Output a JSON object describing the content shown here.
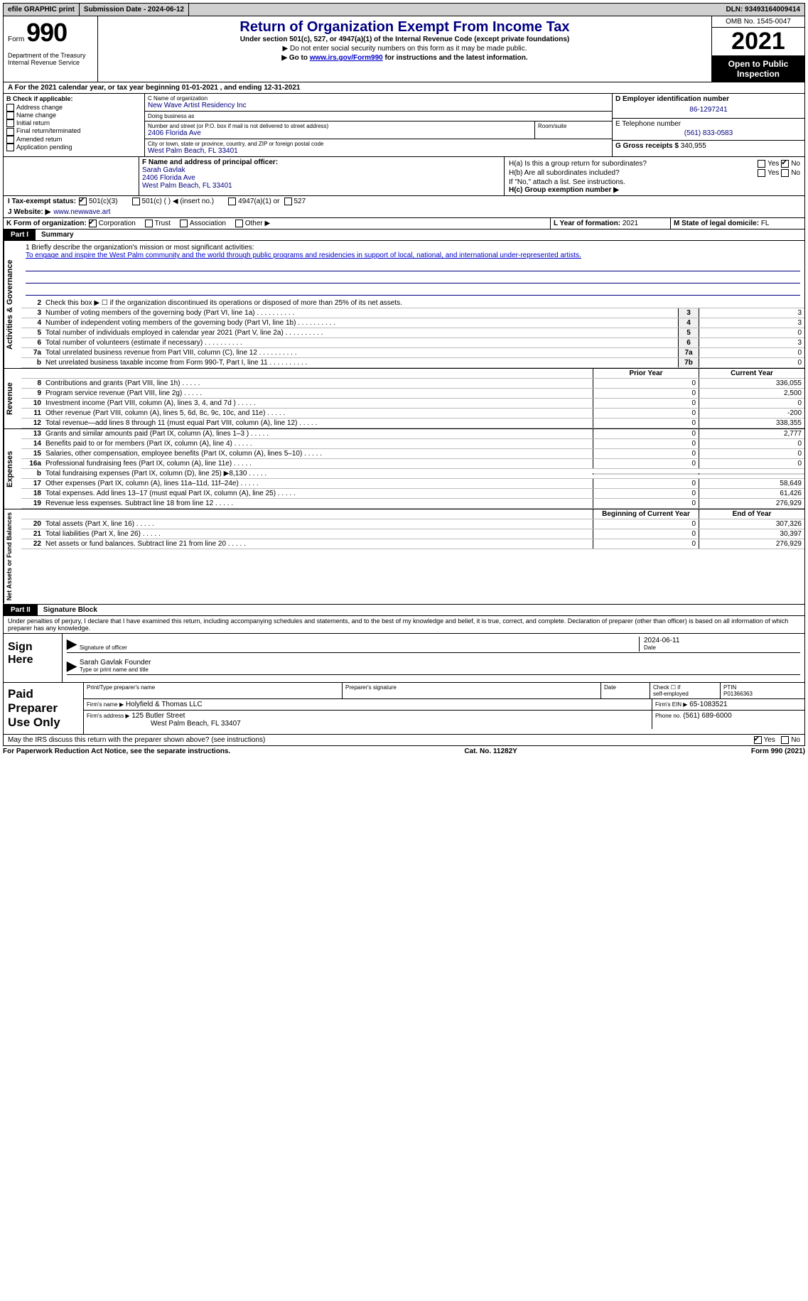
{
  "topbar": {
    "efile": "efile GRAPHIC print",
    "submission": "Submission Date - 2024-06-12",
    "dln": "DLN: 93493164009414"
  },
  "header": {
    "form_label": "Form",
    "form_number": "990",
    "dept": "Department of the Treasury Internal Revenue Service",
    "title": "Return of Organization Exempt From Income Tax",
    "subtitle": "Under section 501(c), 527, or 4947(a)(1) of the Internal Revenue Code (except private foundations)",
    "no_ssn": "▶ Do not enter social security numbers on this form as it may be made public.",
    "goto_prefix": "▶ Go to ",
    "goto_link": "www.irs.gov/Form990",
    "goto_suffix": " for instructions and the latest information.",
    "omb": "OMB No. 1545-0047",
    "year": "2021",
    "open_public": "Open to Public Inspection"
  },
  "period": "A For the 2021 calendar year, or tax year beginning 01-01-2021   , and ending 12-31-2021",
  "boxB": {
    "header": "B Check if applicable:",
    "items": [
      "Address change",
      "Name change",
      "Initial return",
      "Final return/terminated",
      "Amended return",
      "Application pending"
    ]
  },
  "boxC": {
    "name_lbl": "C Name of organization",
    "name_val": "New Wave Artist Residency Inc",
    "dba_lbl": "Doing business as",
    "dba_val": "",
    "street_lbl": "Number and street (or P.O. box if mail is not delivered to street address)",
    "street_val": "2406 Florida Ave",
    "room_lbl": "Room/suite",
    "room_val": "",
    "city_lbl": "City or town, state or province, country, and ZIP or foreign postal code",
    "city_val": "West Palm Beach, FL  33401"
  },
  "boxD": {
    "ein_lbl": "D Employer identification number",
    "ein_val": "86-1297241",
    "tel_lbl": "E Telephone number",
    "tel_val": "(561) 833-0583",
    "gross_lbl": "G Gross receipts $",
    "gross_val": "340,955"
  },
  "boxF": {
    "label": "F  Name and address of principal officer:",
    "name": "Sarah Gavlak",
    "street": "2406 Florida Ave",
    "city": "West Palm Beach, FL  33401"
  },
  "boxH": {
    "ha": "H(a)  Is this a group return for subordinates?",
    "hb": "H(b)  Are all subordinates included?",
    "hb_note": "If \"No,\" attach a list. See instructions.",
    "hc": "H(c)  Group exemption number ▶",
    "yes": "Yes",
    "no": "No"
  },
  "taxexempt": {
    "label": "I  Tax-exempt status:",
    "opt1": "501(c)(3)",
    "opt2": "501(c) (  ) ◀ (insert no.)",
    "opt3": "4947(a)(1) or",
    "opt4": "527"
  },
  "website": {
    "label": "J  Website: ▶",
    "val": "www.newwave.art"
  },
  "formorg": {
    "label": "K Form of organization:",
    "opts": [
      "Corporation",
      "Trust",
      "Association",
      "Other ▶"
    ],
    "year_lbl": "L Year of formation:",
    "year_val": "2021",
    "state_lbl": "M State of legal domicile:",
    "state_val": "FL"
  },
  "parts": {
    "p1": {
      "num": "Part I",
      "title": "Summary"
    },
    "p2": {
      "num": "Part II",
      "title": "Signature Block"
    }
  },
  "sidelabels": {
    "act": "Activities & Governance",
    "rev": "Revenue",
    "exp": "Expenses",
    "net": "Net Assets or Fund Balances"
  },
  "mission": {
    "q": "1   Briefly describe the organization's mission or most significant activities:",
    "text": "To engage and inspire the West Palm community and the world through public programs and residencies in support of local, national, and international under-represented artists."
  },
  "line2": "Check this box ▶ ☐  if the organization discontinued its operations or disposed of more than 25% of its net assets.",
  "colheaders": {
    "prior": "Prior Year",
    "current": "Current Year",
    "begin": "Beginning of Current Year",
    "end": "End of Year"
  },
  "lines_act": [
    {
      "n": "3",
      "desc": "Number of voting members of the governing body (Part VI, line 1a)",
      "box": "3",
      "val": "3"
    },
    {
      "n": "4",
      "desc": "Number of independent voting members of the governing body (Part VI, line 1b)",
      "box": "4",
      "val": "3"
    },
    {
      "n": "5",
      "desc": "Total number of individuals employed in calendar year 2021 (Part V, line 2a)",
      "box": "5",
      "val": "0"
    },
    {
      "n": "6",
      "desc": "Total number of volunteers (estimate if necessary)",
      "box": "6",
      "val": "3"
    },
    {
      "n": "7a",
      "desc": "Total unrelated business revenue from Part VIII, column (C), line 12",
      "box": "7a",
      "val": "0"
    },
    {
      "n": "b",
      "desc": "Net unrelated business taxable income from Form 990-T, Part I, line 11",
      "box": "7b",
      "val": "0"
    }
  ],
  "lines_rev": [
    {
      "n": "8",
      "desc": "Contributions and grants (Part VIII, line 1h)",
      "prior": "0",
      "curr": "336,055"
    },
    {
      "n": "9",
      "desc": "Program service revenue (Part VIII, line 2g)",
      "prior": "0",
      "curr": "2,500"
    },
    {
      "n": "10",
      "desc": "Investment income (Part VIII, column (A), lines 3, 4, and 7d )",
      "prior": "0",
      "curr": "0"
    },
    {
      "n": "11",
      "desc": "Other revenue (Part VIII, column (A), lines 5, 6d, 8c, 9c, 10c, and 11e)",
      "prior": "0",
      "curr": "-200"
    },
    {
      "n": "12",
      "desc": "Total revenue—add lines 8 through 11 (must equal Part VIII, column (A), line 12)",
      "prior": "0",
      "curr": "338,355"
    }
  ],
  "lines_exp": [
    {
      "n": "13",
      "desc": "Grants and similar amounts paid (Part IX, column (A), lines 1–3 )",
      "prior": "0",
      "curr": "2,777"
    },
    {
      "n": "14",
      "desc": "Benefits paid to or for members (Part IX, column (A), line 4)",
      "prior": "0",
      "curr": "0"
    },
    {
      "n": "15",
      "desc": "Salaries, other compensation, employee benefits (Part IX, column (A), lines 5–10)",
      "prior": "0",
      "curr": "0"
    },
    {
      "n": "16a",
      "desc": "Professional fundraising fees (Part IX, column (A), line 11e)",
      "prior": "0",
      "curr": "0"
    },
    {
      "n": "b",
      "desc": "Total fundraising expenses (Part IX, column (D), line 25) ▶8,130",
      "prior": "",
      "curr": "",
      "shade": true
    },
    {
      "n": "17",
      "desc": "Other expenses (Part IX, column (A), lines 11a–11d, 11f–24e)",
      "prior": "0",
      "curr": "58,649"
    },
    {
      "n": "18",
      "desc": "Total expenses. Add lines 13–17 (must equal Part IX, column (A), line 25)",
      "prior": "0",
      "curr": "61,426"
    },
    {
      "n": "19",
      "desc": "Revenue less expenses. Subtract line 18 from line 12",
      "prior": "0",
      "curr": "276,929"
    }
  ],
  "lines_net": [
    {
      "n": "20",
      "desc": "Total assets (Part X, line 16)",
      "prior": "0",
      "curr": "307,326"
    },
    {
      "n": "21",
      "desc": "Total liabilities (Part X, line 26)",
      "prior": "0",
      "curr": "30,397"
    },
    {
      "n": "22",
      "desc": "Net assets or fund balances. Subtract line 21 from line 20",
      "prior": "0",
      "curr": "276,929"
    }
  ],
  "sig_decl": "Under penalties of perjury, I declare that I have examined this return, including accompanying schedules and statements, and to the best of my knowledge and belief, it is true, correct, and complete. Declaration of preparer (other than officer) is based on all information of which preparer has any knowledge.",
  "sign": {
    "label": "Sign Here",
    "sig_lbl": "Signature of officer",
    "date_val": "2024-06-11",
    "date_lbl": "Date",
    "name_val": "Sarah Gavlak  Founder",
    "name_lbl": "Type or print name and title"
  },
  "prep": {
    "label": "Paid Preparer Use Only",
    "col1": "Print/Type preparer's name",
    "col2": "Preparer's signature",
    "col3": "Date",
    "col4_a": "Check ☐ if",
    "col4_b": "self-employed",
    "col5_lbl": "PTIN",
    "col5_val": "P01366363",
    "firm_name_lbl": "Firm's name    ▶",
    "firm_name_val": "Holyfield & Thomas LLC",
    "firm_ein_lbl": "Firm's EIN ▶",
    "firm_ein_val": "65-1083521",
    "firm_addr_lbl": "Firm's address ▶",
    "firm_addr_val1": "125 Butler Street",
    "firm_addr_val2": "West Palm Beach, FL  33407",
    "phone_lbl": "Phone no.",
    "phone_val": "(561) 689-6000"
  },
  "discuss": {
    "q": "May the IRS discuss this return with the preparer shown above? (see instructions)",
    "yes": "Yes",
    "no": "No"
  },
  "footer": {
    "left": "For Paperwork Reduction Act Notice, see the separate instructions.",
    "mid": "Cat. No. 11282Y",
    "right": "Form 990 (2021)"
  }
}
